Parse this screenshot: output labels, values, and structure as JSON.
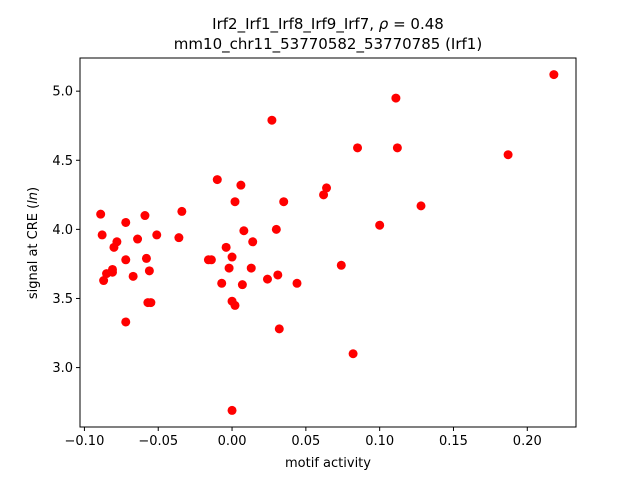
{
  "chart_data": {
    "type": "scatter",
    "title_line1": "Irf2_Irf1_Irf8_Irf9_Irf7, ρ = 0.48",
    "title_line2": "mm10_chr11_53770582_53770785 (Irf1)",
    "xlabel": "motif activity",
    "ylabel": "signal at CRE (ln)",
    "xlim": [
      -0.103,
      0.233
    ],
    "ylim": [
      2.57,
      5.24
    ],
    "xticks": [
      -0.1,
      -0.05,
      0.0,
      0.05,
      0.1,
      0.15,
      0.2
    ],
    "xtick_labels": [
      "−0.10",
      "−0.05",
      "0.00",
      "0.05",
      "0.10",
      "0.15",
      "0.20"
    ],
    "yticks": [
      3.0,
      3.5,
      4.0,
      4.5,
      5.0
    ],
    "ytick_labels": [
      "3.0",
      "3.5",
      "4.0",
      "4.5",
      "5.0"
    ],
    "grid": false,
    "marker_color": "#ff0000",
    "points": [
      {
        "x": -0.089,
        "y": 4.11
      },
      {
        "x": -0.088,
        "y": 3.96
      },
      {
        "x": -0.087,
        "y": 3.63
      },
      {
        "x": -0.085,
        "y": 3.68
      },
      {
        "x": -0.081,
        "y": 3.69
      },
      {
        "x": -0.081,
        "y": 3.71
      },
      {
        "x": -0.08,
        "y": 3.87
      },
      {
        "x": -0.078,
        "y": 3.91
      },
      {
        "x": -0.072,
        "y": 4.05
      },
      {
        "x": -0.072,
        "y": 3.78
      },
      {
        "x": -0.072,
        "y": 3.33
      },
      {
        "x": -0.067,
        "y": 3.66
      },
      {
        "x": -0.064,
        "y": 3.93
      },
      {
        "x": -0.059,
        "y": 4.1
      },
      {
        "x": -0.058,
        "y": 3.79
      },
      {
        "x": -0.057,
        "y": 3.47
      },
      {
        "x": -0.056,
        "y": 3.7
      },
      {
        "x": -0.055,
        "y": 3.47
      },
      {
        "x": -0.051,
        "y": 3.96
      },
      {
        "x": -0.036,
        "y": 3.94
      },
      {
        "x": -0.034,
        "y": 4.13
      },
      {
        "x": -0.016,
        "y": 3.78
      },
      {
        "x": -0.014,
        "y": 3.78
      },
      {
        "x": -0.01,
        "y": 4.36
      },
      {
        "x": -0.007,
        "y": 3.61
      },
      {
        "x": -0.004,
        "y": 3.87
      },
      {
        "x": -0.002,
        "y": 3.72
      },
      {
        "x": 0.0,
        "y": 3.8
      },
      {
        "x": 0.0,
        "y": 3.48
      },
      {
        "x": 0.0,
        "y": 2.69
      },
      {
        "x": 0.002,
        "y": 4.2
      },
      {
        "x": 0.002,
        "y": 3.45
      },
      {
        "x": 0.006,
        "y": 4.32
      },
      {
        "x": 0.007,
        "y": 3.6
      },
      {
        "x": 0.008,
        "y": 3.99
      },
      {
        "x": 0.013,
        "y": 3.72
      },
      {
        "x": 0.014,
        "y": 3.91
      },
      {
        "x": 0.024,
        "y": 3.64
      },
      {
        "x": 0.027,
        "y": 4.79
      },
      {
        "x": 0.03,
        "y": 4.0
      },
      {
        "x": 0.031,
        "y": 3.67
      },
      {
        "x": 0.032,
        "y": 3.28
      },
      {
        "x": 0.035,
        "y": 4.2
      },
      {
        "x": 0.044,
        "y": 3.61
      },
      {
        "x": 0.062,
        "y": 4.25
      },
      {
        "x": 0.064,
        "y": 4.3
      },
      {
        "x": 0.074,
        "y": 3.74
      },
      {
        "x": 0.082,
        "y": 3.1
      },
      {
        "x": 0.085,
        "y": 4.59
      },
      {
        "x": 0.1,
        "y": 4.03
      },
      {
        "x": 0.111,
        "y": 4.95
      },
      {
        "x": 0.112,
        "y": 4.59
      },
      {
        "x": 0.128,
        "y": 4.17
      },
      {
        "x": 0.187,
        "y": 4.54
      },
      {
        "x": 0.218,
        "y": 5.12
      }
    ]
  }
}
